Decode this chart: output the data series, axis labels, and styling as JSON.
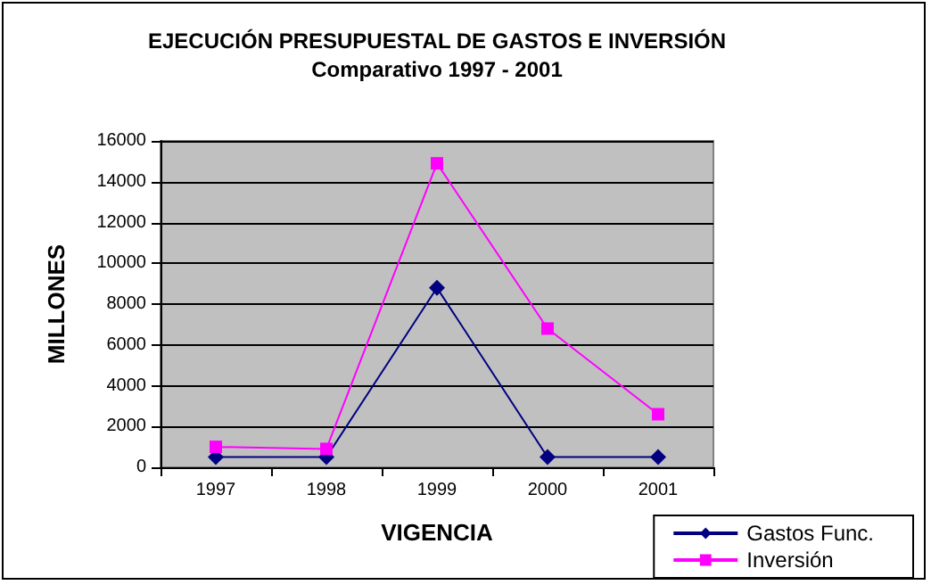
{
  "chart_data": {
    "type": "line",
    "title": "EJECUCIÓN PRESUPUESTAL DE GASTOS E INVERSIÓN",
    "subtitle": "Comparativo 1997 - 2001",
    "xlabel": "VIGENCIA",
    "ylabel": "MILLONES",
    "categories": [
      "1997",
      "1998",
      "1999",
      "2000",
      "2001"
    ],
    "series": [
      {
        "name": "Gastos Func.",
        "color": "#000080",
        "marker": "diamond",
        "values": [
          500,
          500,
          8800,
          500,
          500
        ]
      },
      {
        "name": "Inversión",
        "color": "#ff00ff",
        "marker": "square",
        "values": [
          1000,
          900,
          14900,
          6800,
          2600
        ]
      }
    ],
    "ylim": [
      0,
      16000
    ],
    "yticks": [
      0,
      2000,
      4000,
      6000,
      8000,
      10000,
      12000,
      14000,
      16000
    ],
    "grid": "y",
    "legend": "bottom right",
    "line_style": "solid"
  }
}
